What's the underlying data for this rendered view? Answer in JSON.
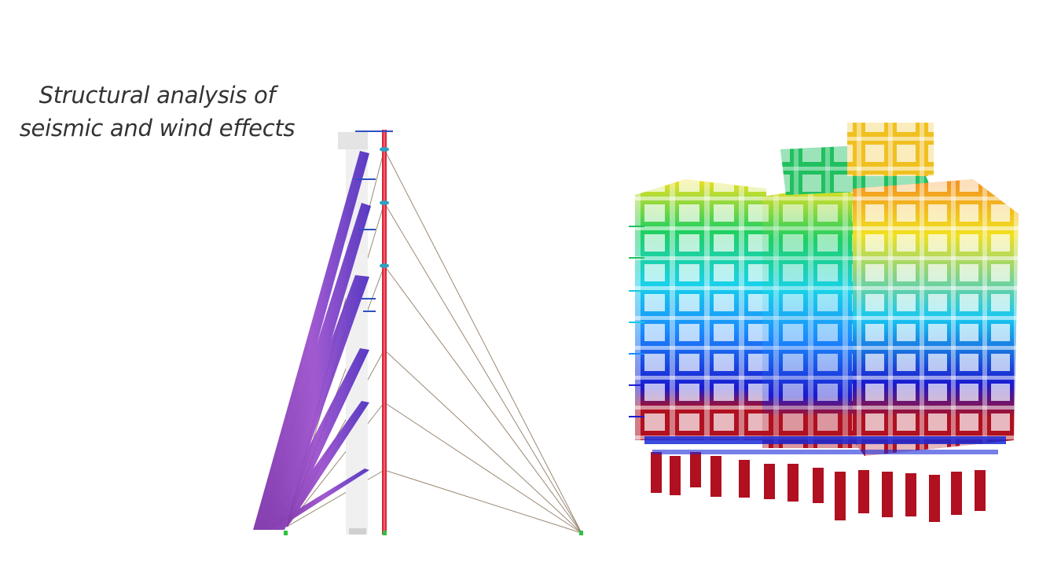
{
  "caption": {
    "line1": "Structural analysis of",
    "line2": "seismic and wind effects"
  },
  "figures": {
    "left": {
      "icon": "cable-stayed-mast-model"
    },
    "right": {
      "icon": "building-frame-deformation-model"
    }
  },
  "colors": {
    "caption_text": "#333333",
    "cable": "#9a8873",
    "mast": "#d8283c",
    "stay_band": "#8a3fb8",
    "contour_scale": [
      "#b01020",
      "#1a1ad0",
      "#1a8cff",
      "#18d2e8",
      "#20d060",
      "#f0f020",
      "#f4a020"
    ]
  }
}
